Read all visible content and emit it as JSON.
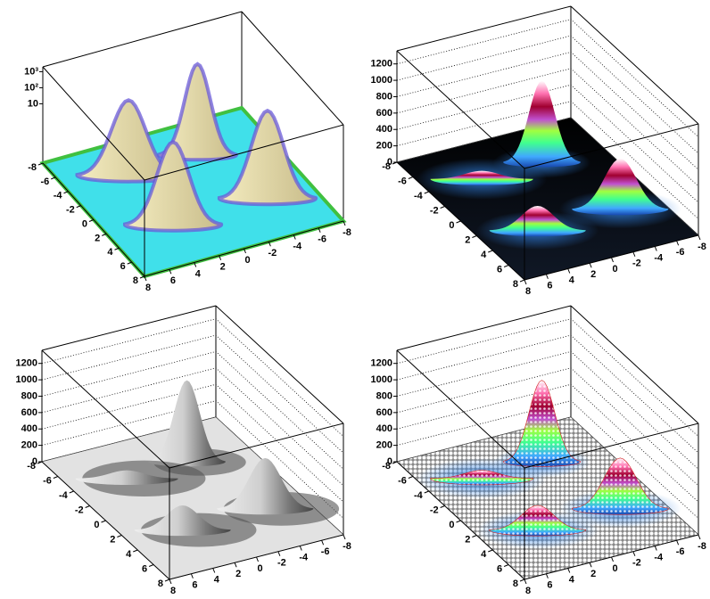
{
  "chart_data": [
    {
      "type": "surface",
      "scheme": "log-contour",
      "zlog": true,
      "grid": false,
      "xlim": [
        -8,
        8
      ],
      "ylim": [
        -8,
        8
      ],
      "zlim": [
        0.002,
        2000
      ],
      "xticks": [
        8,
        6,
        4,
        2,
        0,
        -2,
        -4,
        -6,
        -8
      ],
      "yticks": [
        -8,
        -6,
        -4,
        -2,
        0,
        2,
        4,
        6,
        8
      ],
      "zticks": [
        10,
        {
          "value": 100,
          "label": "10²"
        },
        {
          "value": 1000,
          "label": "10³"
        }
      ],
      "peaks": [
        {
          "x": -2.4,
          "y": -4,
          "height": 1000,
          "width": 1.2
        },
        {
          "x": -4.4,
          "y": 3.1,
          "height": 620,
          "width": 1.5
        },
        {
          "x": 3.2,
          "y": 3.1,
          "height": 300,
          "width": 1.5
        },
        {
          "x": 3.2,
          "y": -3.9,
          "height": 100,
          "width": 1.6
        }
      ]
    },
    {
      "type": "surface",
      "scheme": "color",
      "zlog": false,
      "grid": true,
      "xlim": [
        -8,
        8
      ],
      "ylim": [
        -8,
        8
      ],
      "zlim": [
        0,
        1360
      ],
      "xticks": [
        8,
        6,
        4,
        2,
        0,
        -2,
        -4,
        -6,
        -8
      ],
      "yticks": [
        -8,
        -6,
        -4,
        -2,
        0,
        2,
        4,
        6,
        8
      ],
      "zticks": [
        0,
        200,
        400,
        600,
        800,
        1000,
        1200
      ],
      "peaks": [
        {
          "x": -2.4,
          "y": -4,
          "height": 1000,
          "width": 1.2
        },
        {
          "x": -4.4,
          "y": 3.1,
          "height": 620,
          "width": 1.5
        },
        {
          "x": 3.2,
          "y": 3.1,
          "height": 300,
          "width": 1.5
        },
        {
          "x": 3.2,
          "y": -3.9,
          "height": 100,
          "width": 1.6
        }
      ]
    },
    {
      "type": "surface",
      "scheme": "gray",
      "zlog": false,
      "grid": true,
      "xlim": [
        -8,
        8
      ],
      "ylim": [
        -8,
        8
      ],
      "zlim": [
        0,
        1360
      ],
      "xticks": [
        8,
        6,
        4,
        2,
        0,
        -2,
        -4,
        -6,
        -8
      ],
      "yticks": [
        -8,
        -6,
        -4,
        -2,
        0,
        2,
        4,
        6,
        8
      ],
      "zticks": [
        0,
        200,
        400,
        600,
        800,
        1000,
        1200
      ],
      "peaks": [
        {
          "x": -2.4,
          "y": -4,
          "height": 1000,
          "width": 1.2
        },
        {
          "x": -4.4,
          "y": 3.1,
          "height": 620,
          "width": 1.5
        },
        {
          "x": 3.2,
          "y": 3.1,
          "height": 300,
          "width": 1.5
        },
        {
          "x": 3.2,
          "y": -3.9,
          "height": 100,
          "width": 1.6
        }
      ]
    },
    {
      "type": "surface",
      "scheme": "mesh",
      "zlog": false,
      "grid": true,
      "xlim": [
        -8,
        8
      ],
      "ylim": [
        -8,
        8
      ],
      "zlim": [
        0,
        1360
      ],
      "xticks": [
        8,
        6,
        4,
        2,
        0,
        -2,
        -4,
        -6,
        -8
      ],
      "yticks": [
        -8,
        -6,
        -4,
        -2,
        0,
        2,
        4,
        6,
        8
      ],
      "zticks": [
        0,
        200,
        400,
        600,
        800,
        1000,
        1200
      ],
      "peaks": [
        {
          "x": -2.4,
          "y": -4,
          "height": 1000,
          "width": 1.2
        },
        {
          "x": -4.4,
          "y": 3.1,
          "height": 620,
          "width": 1.5
        },
        {
          "x": 3.2,
          "y": 3.1,
          "height": 300,
          "width": 1.5
        },
        {
          "x": 3.2,
          "y": -3.9,
          "height": 100,
          "width": 1.6
        }
      ]
    }
  ]
}
